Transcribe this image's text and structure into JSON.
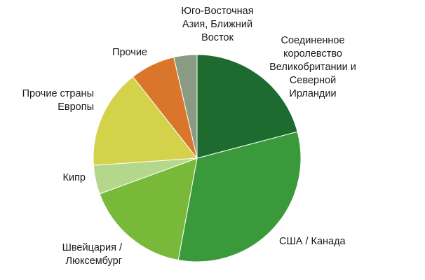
{
  "chart_data": {
    "type": "pie",
    "title": "",
    "start_angle_deg": 0,
    "direction": "clockwise",
    "slices": [
      {
        "key": "uk",
        "label": "Соединенное королевство Великобритании и Северной Ирландии",
        "label_lines": [
          "Соединенное",
          "королевство",
          "Великобритании и",
          "Северной",
          "Ирландии"
        ],
        "value": 20.9,
        "color": "#1d6b2f"
      },
      {
        "key": "usa-canada",
        "label": "США / Канада",
        "label_lines": [
          "США / Канада"
        ],
        "value": 32.0,
        "color": "#3a9a3b"
      },
      {
        "key": "switzerland-luxembourg",
        "label": "Швейцария / Люксембург",
        "label_lines": [
          "Швейцария /",
          "Люксембург"
        ],
        "value": 16.5,
        "color": "#79b93a"
      },
      {
        "key": "cyprus",
        "label": "Кипр",
        "label_lines": [
          "Кипр"
        ],
        "value": 4.5,
        "color": "#b4d78c"
      },
      {
        "key": "other-europe",
        "label": "Прочие страны Европы",
        "label_lines": [
          "Прочие страны",
          "Европы"
        ],
        "value": 15.5,
        "color": "#d3d24a"
      },
      {
        "key": "other",
        "label": "Прочие",
        "label_lines": [
          "Прочие"
        ],
        "value": 7.0,
        "color": "#d9762b"
      },
      {
        "key": "se-asia-near-east",
        "label": "Юго-Восточная Азия, Ближний Восток",
        "label_lines": [
          "Юго-Восточная",
          "Азия, Ближний",
          "Восток"
        ],
        "value": 3.6,
        "color": "#899b82"
      }
    ]
  }
}
